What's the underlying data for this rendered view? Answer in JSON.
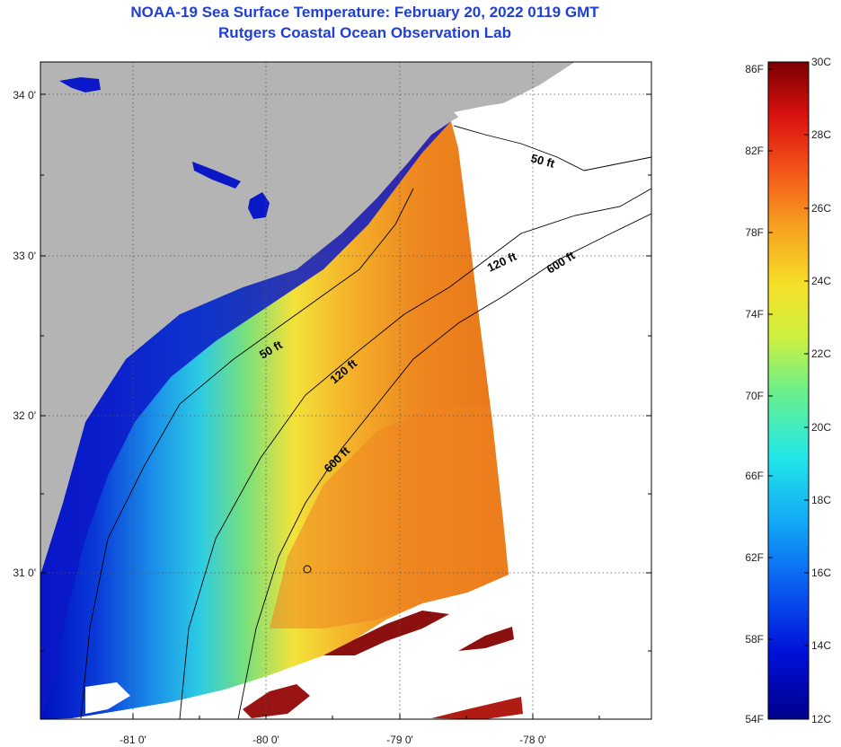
{
  "title": {
    "line1": "NOAA-19 Sea Surface Temperature:  February 20, 2022 0119 GMT",
    "line2": "Rutgers Coastal Ocean Observation Lab"
  },
  "axes": {
    "lat_labels": [
      "34 0'",
      "33 0'",
      "32 0'",
      "31 0'"
    ],
    "lon_labels": [
      "-81 0'",
      "-80 0'",
      "-79 0'",
      "-78 0'"
    ]
  },
  "contours": {
    "c50": "50 ft",
    "c120": "120 ft",
    "c600": "600 ft",
    "c50b": "50 ft",
    "c120b": "120 ft",
    "c600b": "600 ft"
  },
  "colorbar": {
    "fahrenheit": [
      "86F",
      "82F",
      "78F",
      "74F",
      "70F",
      "66F",
      "62F",
      "58F",
      "54F"
    ],
    "celsius": [
      "30C",
      "28C",
      "26C",
      "24C",
      "22C",
      "20C",
      "18C",
      "16C",
      "14C",
      "12C"
    ]
  },
  "colors": {
    "land": "#b4b4b4",
    "cold": "#0a14c8",
    "warm": "#f08a1e",
    "hot": "#8c1010",
    "title": "#1f3fd6"
  }
}
